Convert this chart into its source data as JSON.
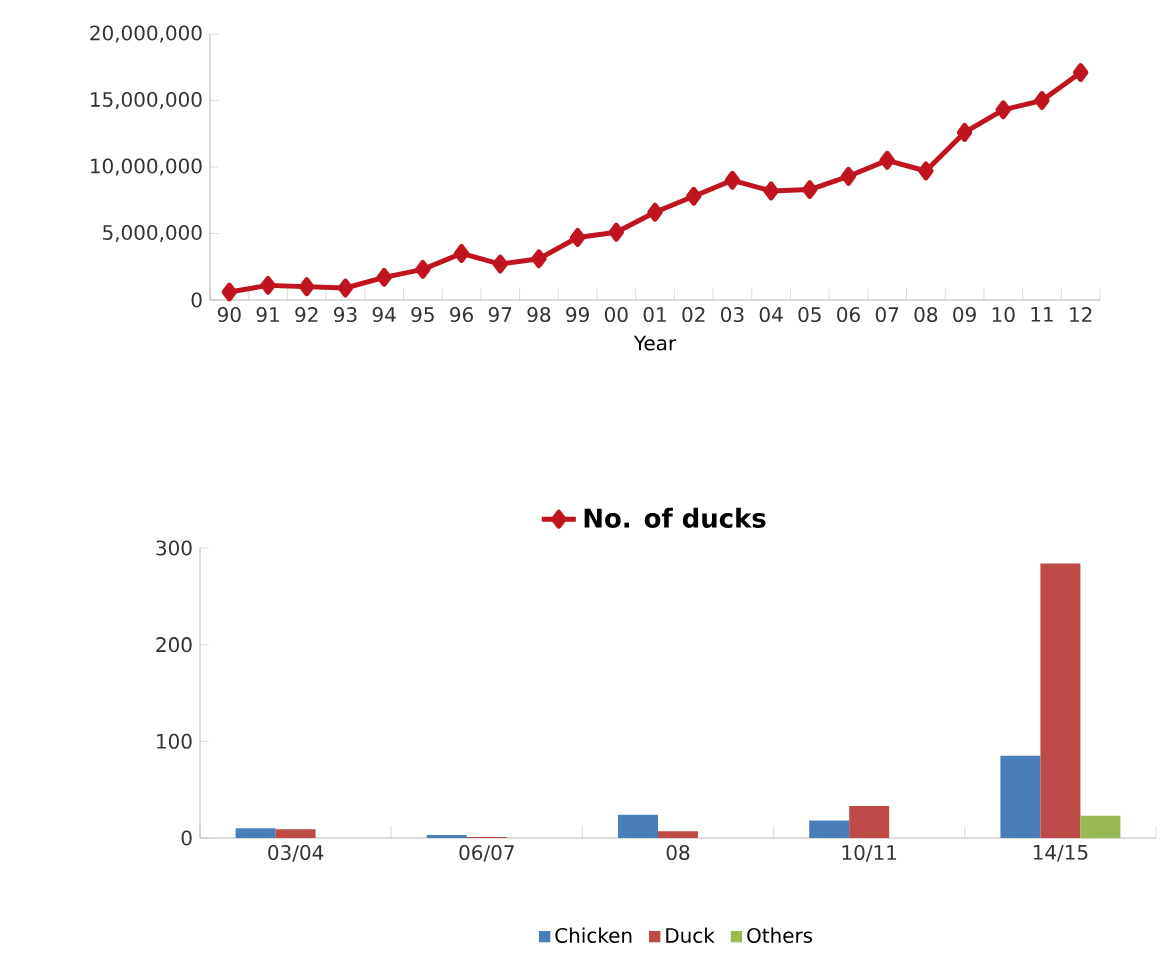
{
  "chart_data": [
    {
      "type": "line",
      "categories": [
        "90",
        "91",
        "92",
        "93",
        "94",
        "95",
        "96",
        "97",
        "98",
        "99",
        "00",
        "01",
        "02",
        "03",
        "04",
        "05",
        "06",
        "07",
        "08",
        "09",
        "10",
        "11",
        "12"
      ],
      "xlabel": "Year",
      "series": [
        {
          "name": "No. of ducks",
          "color": "#c0141e",
          "values": [
            600000,
            1100000,
            1000000,
            900000,
            1700000,
            2300000,
            3500000,
            2700000,
            3100000,
            4700000,
            5100000,
            6600000,
            7800000,
            9000000,
            8200000,
            8300000,
            9300000,
            10500000,
            9700000,
            12600000,
            14300000,
            15000000,
            17100000
          ]
        }
      ],
      "ylim": [
        0,
        20000000
      ],
      "yticks": [
        0,
        {
          "value": 5000000,
          "label": "5,000,000"
        },
        {
          "value": 10000000,
          "label": "10,000,000"
        },
        {
          "value": 15000000,
          "label": "15,000,000"
        },
        {
          "value": 20000000,
          "label": "20,000,000"
        }
      ],
      "marker": "diamond",
      "legend": "bottom"
    },
    {
      "type": "bar",
      "categories": [
        "03/04",
        "06/07",
        "08",
        "10/11",
        "14/15"
      ],
      "series": [
        {
          "name": "Chicken",
          "color": "#4a7ebb",
          "values": [
            10,
            3,
            24,
            18,
            85
          ]
        },
        {
          "name": "Duck",
          "color": "#be4b48",
          "values": [
            9,
            1,
            7,
            33,
            284
          ]
        },
        {
          "name": "Others",
          "color": "#98b954",
          "values": [
            null,
            null,
            null,
            null,
            23
          ]
        }
      ],
      "ylim": [
        0,
        300
      ],
      "yticks": [
        0,
        100,
        200,
        300
      ],
      "legend": "bottom"
    }
  ]
}
